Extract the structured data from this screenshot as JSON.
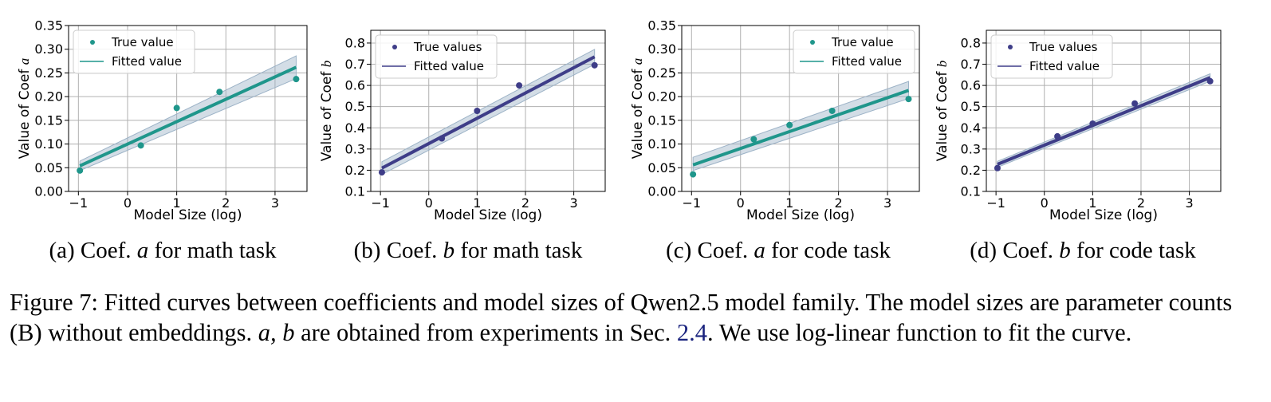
{
  "figure": {
    "caption_label": "Figure 7:",
    "caption_part1": "Fitted curves between coefficients and model sizes of Qwen2.5 model family. The model sizes are parameter counts (B) without embeddings.",
    "caption_vars": "a, b",
    "caption_part2": "are obtained from experiments in Sec.",
    "caption_ref": "2.4",
    "caption_part3": ". We use log-linear function to fit the curve."
  },
  "colors": {
    "teal": "#1f968b",
    "purple": "#3e3d88",
    "band": "#9db3c7",
    "grid": "#b0b0b0"
  },
  "chart_data": [
    {
      "type": "scatter",
      "subcaption_prefix": "(a) Coef.",
      "subcaption_var": "a",
      "subcaption_suffix": "for math task",
      "xlabel": "Model Size (log)",
      "ylabel_prefix": "Value of Coef ",
      "ylabel_var": "a",
      "xlim": [
        -1.2,
        3.65
      ],
      "ylim": [
        0.0,
        0.35
      ],
      "xticks": [
        -1,
        0,
        1,
        2,
        3
      ],
      "xtick_labels": [
        "−1",
        "0",
        "1",
        "2",
        "3"
      ],
      "yticks": [
        0.0,
        0.05,
        0.1,
        0.15,
        0.2,
        0.25,
        0.3,
        0.35
      ],
      "ytick_labels": [
        "0.00",
        "0.05",
        "0.10",
        "0.15",
        "0.20",
        "0.25",
        "0.30",
        "0.35"
      ],
      "color": "teal",
      "legend_position": "top-left",
      "series": [
        {
          "name": "True value",
          "kind": "points",
          "x": [
            -0.97,
            0.27,
            1.0,
            1.87,
            3.43
          ],
          "y": [
            0.044,
            0.097,
            0.176,
            0.21,
            0.237
          ]
        },
        {
          "name": "Fitted value",
          "kind": "line",
          "x": [
            -0.97,
            3.43
          ],
          "y": [
            0.054,
            0.262
          ],
          "band_lower": [
            0.044,
            0.238
          ],
          "band_upper": [
            0.064,
            0.286
          ]
        }
      ]
    },
    {
      "type": "scatter",
      "subcaption_prefix": "(b) Coef.",
      "subcaption_var": "b",
      "subcaption_suffix": "for math task",
      "xlabel": "Model Size (log)",
      "ylabel_prefix": "Value of Coef ",
      "ylabel_var": "b",
      "xlim": [
        -1.2,
        3.65
      ],
      "ylim": [
        0.1,
        0.86
      ],
      "xticks": [
        -1,
        0,
        1,
        2,
        3
      ],
      "xtick_labels": [
        "−1",
        "0",
        "1",
        "2",
        "3"
      ],
      "yticks": [
        0.1,
        0.2,
        0.3,
        0.4,
        0.5,
        0.6,
        0.7,
        0.8
      ],
      "ytick_labels": [
        "0.1",
        "0.2",
        "0.3",
        "0.4",
        "0.5",
        "0.6",
        "0.7",
        "0.8"
      ],
      "color": "purple",
      "legend_position": "top-left",
      "series": [
        {
          "name": "True values",
          "kind": "points",
          "x": [
            -0.97,
            0.27,
            1.0,
            1.87,
            3.43
          ],
          "y": [
            0.19,
            0.35,
            0.48,
            0.6,
            0.695
          ]
        },
        {
          "name": "Fitted value",
          "kind": "line",
          "x": [
            -0.97,
            3.43
          ],
          "y": [
            0.21,
            0.735
          ],
          "band_lower": [
            0.18,
            0.7
          ],
          "band_upper": [
            0.24,
            0.77
          ]
        }
      ]
    },
    {
      "type": "scatter",
      "subcaption_prefix": "(c) Coef.",
      "subcaption_var": "a",
      "subcaption_suffix": "for code task",
      "xlabel": "Model Size (log)",
      "ylabel_prefix": "Value of Coef ",
      "ylabel_var": "a",
      "xlim": [
        -1.2,
        3.65
      ],
      "ylim": [
        0.0,
        0.35
      ],
      "xticks": [
        -1,
        0,
        1,
        2,
        3
      ],
      "xtick_labels": [
        "−1",
        "0",
        "1",
        "2",
        "3"
      ],
      "yticks": [
        0.0,
        0.05,
        0.1,
        0.15,
        0.2,
        0.25,
        0.3,
        0.35
      ],
      "ytick_labels": [
        "0.00",
        "0.05",
        "0.10",
        "0.15",
        "0.20",
        "0.25",
        "0.30",
        "0.35"
      ],
      "color": "teal",
      "legend_position": "top-right",
      "series": [
        {
          "name": "True value",
          "kind": "points",
          "x": [
            -0.97,
            0.27,
            1.0,
            1.87,
            3.43
          ],
          "y": [
            0.036,
            0.11,
            0.14,
            0.17,
            0.195
          ]
        },
        {
          "name": "Fitted value",
          "kind": "line",
          "x": [
            -0.97,
            3.43
          ],
          "y": [
            0.056,
            0.213
          ],
          "band_lower": [
            0.044,
            0.196
          ],
          "band_upper": [
            0.072,
            0.232
          ]
        }
      ]
    },
    {
      "type": "scatter",
      "subcaption_prefix": "(d) Coef.",
      "subcaption_var": "b",
      "subcaption_suffix": "for code task",
      "xlabel": "Model Size (log)",
      "ylabel_prefix": "Value of Coef ",
      "ylabel_var": "b",
      "xlim": [
        -1.2,
        3.65
      ],
      "ylim": [
        0.1,
        0.86
      ],
      "xticks": [
        -1,
        0,
        1,
        2,
        3
      ],
      "xtick_labels": [
        "−1",
        "0",
        "1",
        "2",
        "3"
      ],
      "yticks": [
        0.1,
        0.2,
        0.3,
        0.4,
        0.5,
        0.6,
        0.7,
        0.8
      ],
      "ytick_labels": [
        "0.1",
        "0.2",
        "0.3",
        "0.4",
        "0.5",
        "0.6",
        "0.7",
        "0.8"
      ],
      "color": "purple",
      "legend_position": "top-left",
      "series": [
        {
          "name": "True values",
          "kind": "points",
          "x": [
            -0.97,
            0.27,
            1.0,
            1.87,
            3.43
          ],
          "y": [
            0.21,
            0.36,
            0.42,
            0.515,
            0.62
          ]
        },
        {
          "name": "Fitted value",
          "kind": "line",
          "x": [
            -0.97,
            3.43
          ],
          "y": [
            0.228,
            0.637
          ],
          "band_lower": [
            0.214,
            0.62
          ],
          "band_upper": [
            0.242,
            0.655
          ]
        }
      ]
    }
  ]
}
